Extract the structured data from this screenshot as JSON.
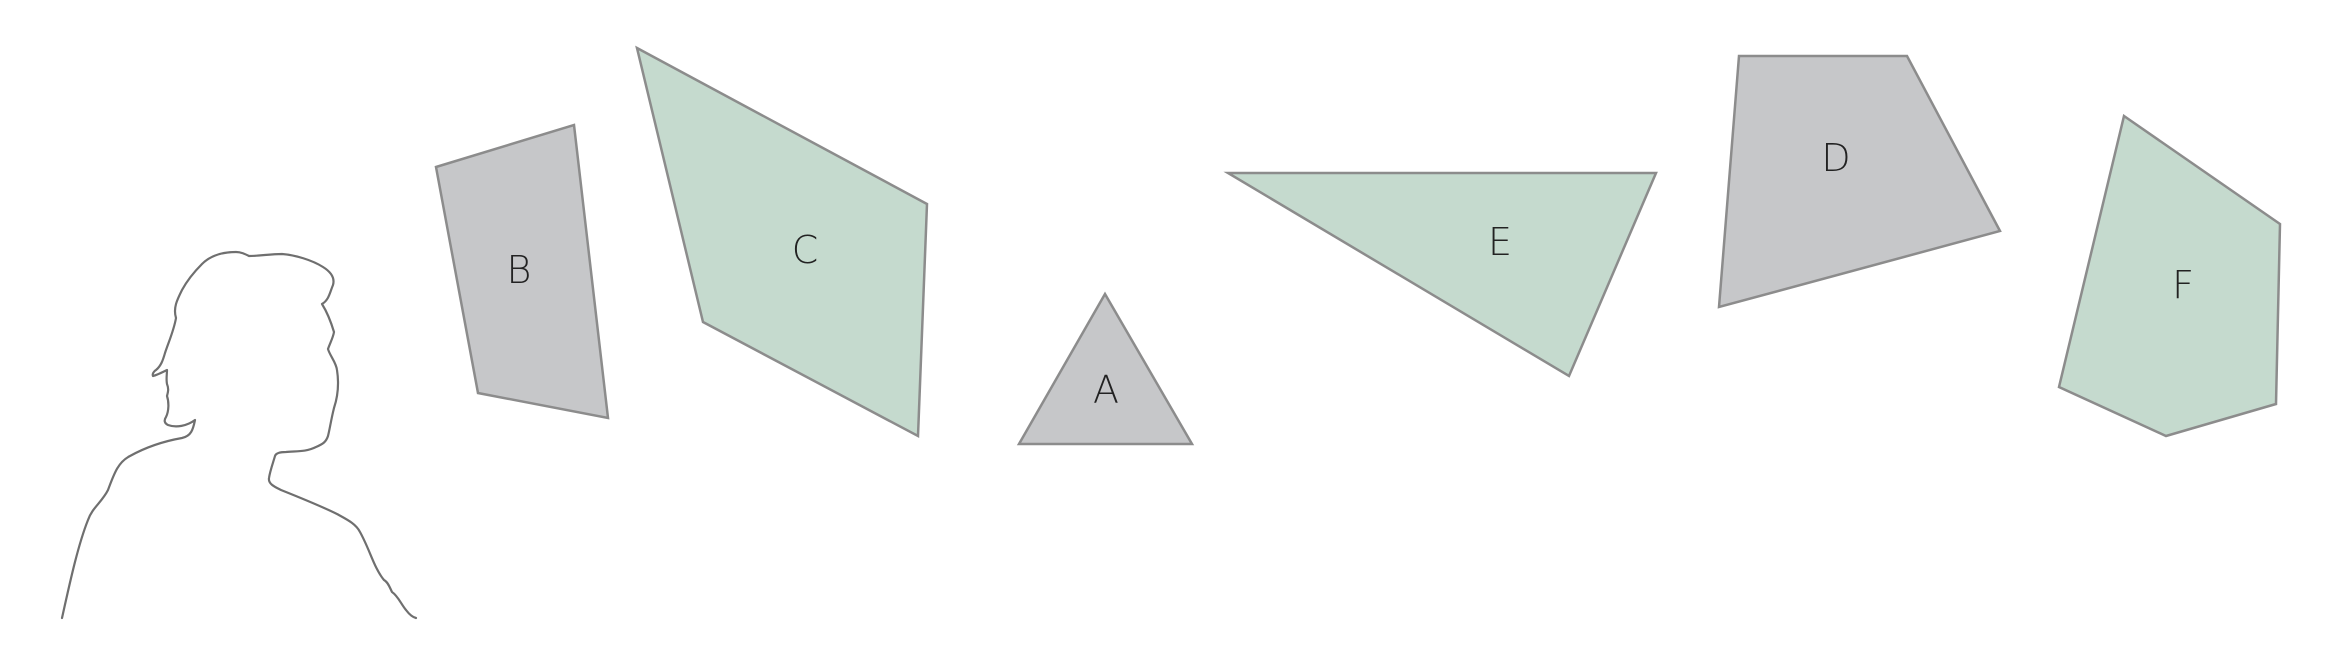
{
  "colors": {
    "gray_fill": "#c6c7c9",
    "green_fill": "#c5dace",
    "outline": "#8c8c8c",
    "silhouette": "#6f6f6f",
    "background": "#ffffff"
  },
  "viewer": {
    "icon": "person-head-silhouette-icon"
  },
  "shapes": [
    {
      "id": "B",
      "label": "B",
      "fill": "gray"
    },
    {
      "id": "C",
      "label": "C",
      "fill": "green"
    },
    {
      "id": "A",
      "label": "A",
      "fill": "gray"
    },
    {
      "id": "E",
      "label": "E",
      "fill": "green"
    },
    {
      "id": "D",
      "label": "D",
      "fill": "gray"
    },
    {
      "id": "F",
      "label": "F",
      "fill": "green"
    }
  ]
}
